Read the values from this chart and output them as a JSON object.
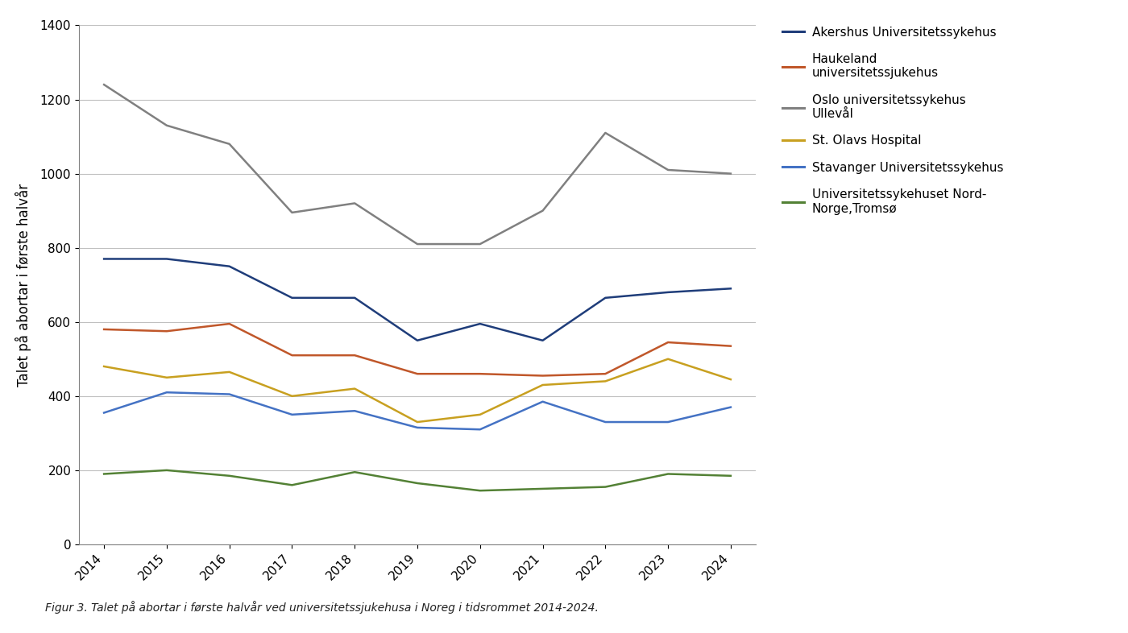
{
  "years": [
    2014,
    2015,
    2016,
    2017,
    2018,
    2019,
    2020,
    2021,
    2022,
    2023,
    2024
  ],
  "series_order": [
    "Akershus Universitetssykehus",
    "Haukeland\nuniversitetssjukehus",
    "Oslo universitetssykehus\nUllevål",
    "St. Olavs Hospital",
    "Stavanger Universitetssykehus",
    "Universitetssykehuset Nord-\nNorge,Tromsø"
  ],
  "series": {
    "Akershus Universitetssykehus": {
      "values": [
        770,
        770,
        750,
        665,
        665,
        550,
        595,
        550,
        665,
        680,
        690
      ],
      "color": "#1f3d7a",
      "linewidth": 1.8
    },
    "Haukeland\nuniversitetssjukehus": {
      "values": [
        580,
        575,
        595,
        510,
        510,
        460,
        460,
        455,
        460,
        545,
        535
      ],
      "color": "#c0572a",
      "linewidth": 1.8
    },
    "Oslo universitetssykehus\nUllevål": {
      "values": [
        1240,
        1130,
        1080,
        895,
        920,
        810,
        810,
        900,
        1110,
        1010,
        1000
      ],
      "color": "#808080",
      "linewidth": 1.8
    },
    "St. Olavs Hospital": {
      "values": [
        480,
        450,
        465,
        400,
        420,
        330,
        350,
        430,
        440,
        500,
        445
      ],
      "color": "#c8a020",
      "linewidth": 1.8
    },
    "Stavanger Universitetssykehus": {
      "values": [
        355,
        410,
        405,
        350,
        360,
        315,
        310,
        385,
        330,
        330,
        370
      ],
      "color": "#4472c4",
      "linewidth": 1.8
    },
    "Universitetssykehuset Nord-\nNorge,Tromsø": {
      "values": [
        190,
        200,
        185,
        160,
        195,
        165,
        145,
        150,
        155,
        190,
        185
      ],
      "color": "#538135",
      "linewidth": 1.8
    }
  },
  "legend_labels": [
    "Akershus Universitetssykehus",
    "Haukeland\nuniversitetssjukehus",
    "Oslo universitetssykehus\nUllevål",
    "St. Olavs Hospital",
    "Stavanger Universitetssykehus",
    "Universitetssykehuset Nord-\nNorge,Tromsø"
  ],
  "ylabel": "Talet på abortar i første halvår",
  "ylim": [
    0,
    1400
  ],
  "yticks": [
    0,
    200,
    400,
    600,
    800,
    1000,
    1200,
    1400
  ],
  "caption": "Figur 3. Talet på abortar i første halvår ved universitetssjukehusa i Noreg i tidsrommet 2014-2024.",
  "background_color": "#ffffff"
}
